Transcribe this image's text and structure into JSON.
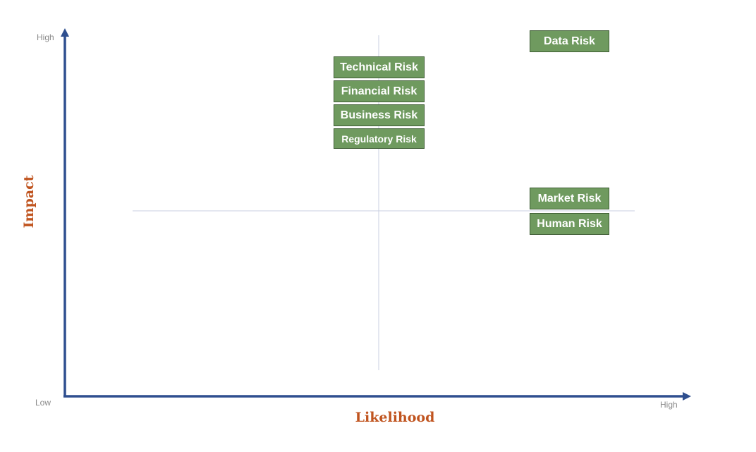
{
  "axes": {
    "y_title": "Impact",
    "x_title": "Likelihood",
    "y_high_label": "High",
    "low_label": "Low",
    "x_high_label": "High",
    "axis_color": "#2f4f8f",
    "guide_color": "#c9cfe0",
    "title_color": "#c0541f"
  },
  "risks": [
    {
      "label": "Data Risk"
    },
    {
      "label": "Technical Risk"
    },
    {
      "label": "Financial Risk"
    },
    {
      "label": "Business Risk"
    },
    {
      "label": "Regulatory Risk"
    },
    {
      "label": "Market Risk"
    },
    {
      "label": "Human Risk"
    }
  ],
  "box_color": "#6f9a5f"
}
